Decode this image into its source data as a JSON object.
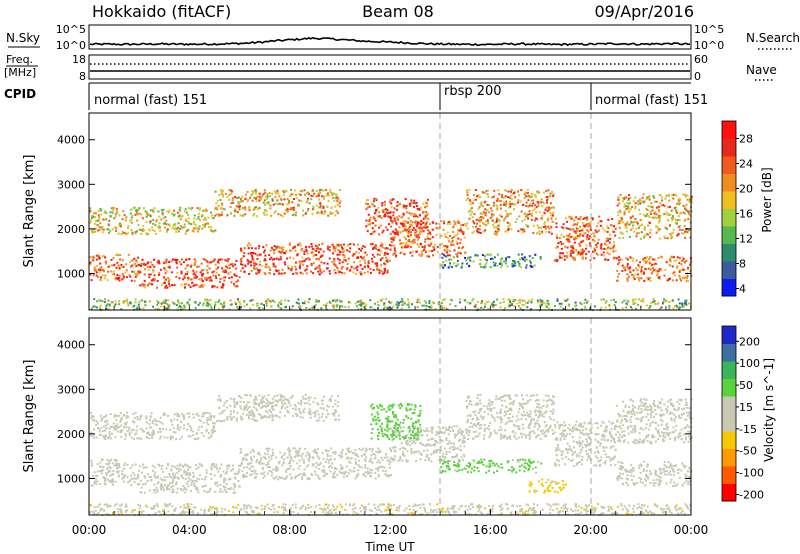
{
  "header": {
    "station": "Hokkaido (fitACF)",
    "beam": "Beam 08",
    "date": "09/Apr/2016"
  },
  "status_panels": {
    "nsky": {
      "label": "N.Sky",
      "left_ticks": [
        "10^5",
        "10^0"
      ],
      "right_ticks": [
        "10^5",
        "10^0"
      ],
      "right_label": "N.Search",
      "noise_profile": [
        0.6,
        0.6,
        0.55,
        0.6,
        0.7,
        0.6,
        0.6,
        0.65,
        0.75,
        0.9,
        1.3,
        1.8,
        2.2,
        2.6,
        2.4,
        2.0,
        1.6,
        1.4,
        1.2,
        0.9,
        0.7,
        0.6,
        0.55,
        0.5,
        0.6,
        0.7,
        0.6,
        0.5,
        0.55,
        0.6,
        0.7,
        0.8,
        0.6,
        0.7,
        0.8,
        0.6
      ]
    },
    "freq": {
      "label_top": "Freq.",
      "label_unit": "[MHz]",
      "left_ticks": [
        "18",
        "8"
      ],
      "right_ticks": [
        "60",
        "0"
      ],
      "right_label": "Nave"
    },
    "cpid": {
      "label": "CPID",
      "segments": [
        {
          "label": "normal (fast) 151",
          "start_hour": 0,
          "end_hour": 14
        },
        {
          "label": "rbsp 200",
          "start_hour": 14,
          "end_hour": 20
        },
        {
          "label": "normal (fast) 151",
          "start_hour": 20,
          "end_hour": 24
        }
      ]
    }
  },
  "chart_data": [
    {
      "type": "heatmap",
      "parameter": "Power",
      "ylabel": "Slant Range [km]",
      "xlabel": "",
      "xlim": [
        0,
        24
      ],
      "ylim": [
        180,
        4600
      ],
      "yticks": [
        1000,
        2000,
        3000,
        4000
      ],
      "colorbar": {
        "label": "Power [dB]",
        "ticks": [
          "28",
          "24",
          "20",
          "16",
          "12",
          "8",
          "4"
        ],
        "colors": [
          "#0a1cf0",
          "#3c5aa0",
          "#2e8c6e",
          "#55b84a",
          "#9fd23c",
          "#f0c020",
          "#f08c20",
          "#f05a1e",
          "#e8281e",
          "#ff1010"
        ],
        "range": [
          0,
          30
        ]
      },
      "scatter_bands": [
        {
          "t0": 0.0,
          "t1": 2.0,
          "r_lo": 850,
          "r_hi": 1450,
          "value": 22
        },
        {
          "t0": 2.0,
          "t1": 6.0,
          "r_lo": 700,
          "r_hi": 1350,
          "value": 24
        },
        {
          "t0": 6.0,
          "t1": 12.0,
          "r_lo": 1000,
          "r_hi": 1700,
          "value": 24
        },
        {
          "t0": 12.0,
          "t1": 15.0,
          "r_lo": 1400,
          "r_hi": 2200,
          "value": 22
        },
        {
          "t0": 15.0,
          "t1": 18.5,
          "r_lo": 1900,
          "r_hi": 2900,
          "value": 20
        },
        {
          "t0": 18.5,
          "t1": 21.0,
          "r_lo": 1300,
          "r_hi": 2300,
          "value": 22
        },
        {
          "t0": 21.0,
          "t1": 24.0,
          "r_lo": 850,
          "r_hi": 1400,
          "value": 22
        },
        {
          "t0": 0.0,
          "t1": 5.0,
          "r_lo": 1900,
          "r_hi": 2500,
          "value": 16
        },
        {
          "t0": 5.0,
          "t1": 10.0,
          "r_lo": 2300,
          "r_hi": 2900,
          "value": 18
        },
        {
          "t0": 11.0,
          "t1": 13.5,
          "r_lo": 1900,
          "r_hi": 2700,
          "value": 24
        },
        {
          "t0": 14.0,
          "t1": 18.0,
          "r_lo": 1150,
          "r_hi": 1450,
          "value": 8
        },
        {
          "t0": 21.0,
          "t1": 24.0,
          "r_lo": 1800,
          "r_hi": 2800,
          "value": 18
        },
        {
          "t0": 0.0,
          "t1": 24.0,
          "r_lo": 200,
          "r_hi": 450,
          "value": 12
        }
      ]
    },
    {
      "type": "heatmap",
      "parameter": "Velocity",
      "ylabel": "Slant Range [km]",
      "xlabel": "Time UT",
      "xlim": [
        0,
        24
      ],
      "ylim": [
        180,
        4600
      ],
      "yticks": [
        1000,
        2000,
        3000,
        4000
      ],
      "xticks": [
        "00:00",
        "04:00",
        "08:00",
        "12:00",
        "16:00",
        "20:00",
        "00:00"
      ],
      "colorbar": {
        "label": "Velocity [m s^-1]",
        "ticks": [
          "200",
          "100",
          "50",
          "15",
          "-15",
          "-50",
          "-100",
          "-200"
        ],
        "colors": [
          "#ff0000",
          "#ff5a00",
          "#ff9a00",
          "#f5c800",
          "#c8c8b4",
          "#c8c8b4",
          "#5ad23c",
          "#3cb45a",
          "#3c6ea0",
          "#1e28c8"
        ],
        "range": [
          -250,
          250
        ]
      },
      "scatter_bands": [
        {
          "t0": 0.0,
          "t1": 2.0,
          "r_lo": 850,
          "r_hi": 1450,
          "value": 0
        },
        {
          "t0": 2.0,
          "t1": 6.0,
          "r_lo": 700,
          "r_hi": 1350,
          "value": 0
        },
        {
          "t0": 6.0,
          "t1": 12.0,
          "r_lo": 1000,
          "r_hi": 1700,
          "value": 0
        },
        {
          "t0": 12.0,
          "t1": 15.0,
          "r_lo": 1400,
          "r_hi": 2200,
          "value": 0
        },
        {
          "t0": 15.0,
          "t1": 18.5,
          "r_lo": 1900,
          "r_hi": 2900,
          "value": 0
        },
        {
          "t0": 18.5,
          "t1": 21.0,
          "r_lo": 1300,
          "r_hi": 2300,
          "value": 0
        },
        {
          "t0": 21.0,
          "t1": 24.0,
          "r_lo": 850,
          "r_hi": 1400,
          "value": 0
        },
        {
          "t0": 0.0,
          "t1": 5.0,
          "r_lo": 1900,
          "r_hi": 2500,
          "value": -20
        },
        {
          "t0": 5.0,
          "t1": 10.0,
          "r_lo": 2300,
          "r_hi": 2900,
          "value": -20
        },
        {
          "t0": 11.2,
          "t1": 13.2,
          "r_lo": 1900,
          "r_hi": 2700,
          "value": 80
        },
        {
          "t0": 14.0,
          "t1": 18.0,
          "r_lo": 1150,
          "r_hi": 1450,
          "value": 60
        },
        {
          "t0": 17.5,
          "t1": 19.0,
          "r_lo": 700,
          "r_hi": 1000,
          "value": -60
        },
        {
          "t0": 21.0,
          "t1": 24.0,
          "r_lo": 1800,
          "r_hi": 2800,
          "value": -20
        },
        {
          "t0": 0.0,
          "t1": 24.0,
          "r_lo": 200,
          "r_hi": 450,
          "value": -40
        }
      ]
    }
  ]
}
